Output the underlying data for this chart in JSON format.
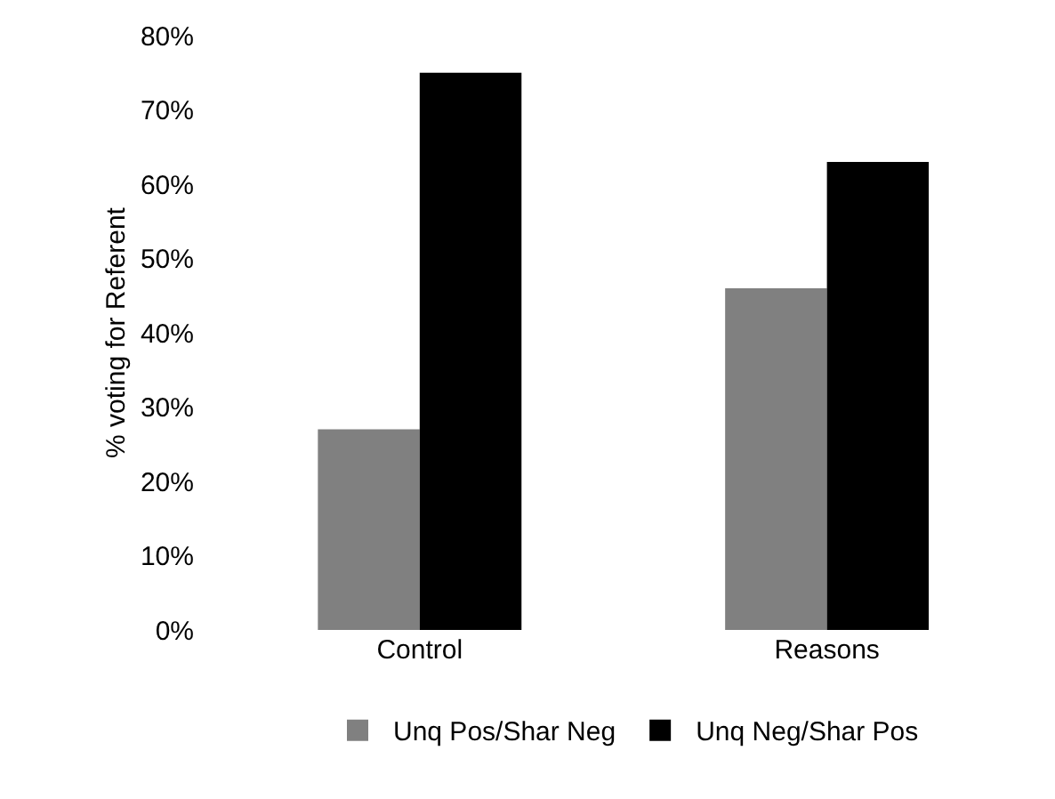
{
  "chart_data": {
    "type": "bar",
    "ylabel": "% voting for Referent",
    "categories": [
      "Control",
      "Reasons"
    ],
    "series": [
      {
        "name": "Unq Pos/Shar Neg",
        "color": "#808080",
        "values": [
          27,
          46
        ]
      },
      {
        "name": "Unq Neg/Shar Pos",
        "color": "#000000",
        "values": [
          75,
          63
        ]
      }
    ],
    "ylim": [
      0,
      80
    ],
    "yticks": [
      {
        "value": 0,
        "label": "0%"
      },
      {
        "value": 10,
        "label": "10%"
      },
      {
        "value": 20,
        "label": "20%"
      },
      {
        "value": 30,
        "label": "30%"
      },
      {
        "value": 40,
        "label": "40%"
      },
      {
        "value": 50,
        "label": "50%"
      },
      {
        "value": 60,
        "label": "60%"
      },
      {
        "value": 70,
        "label": "70%"
      },
      {
        "value": 80,
        "label": "80%"
      }
    ],
    "legend": "bottom"
  }
}
